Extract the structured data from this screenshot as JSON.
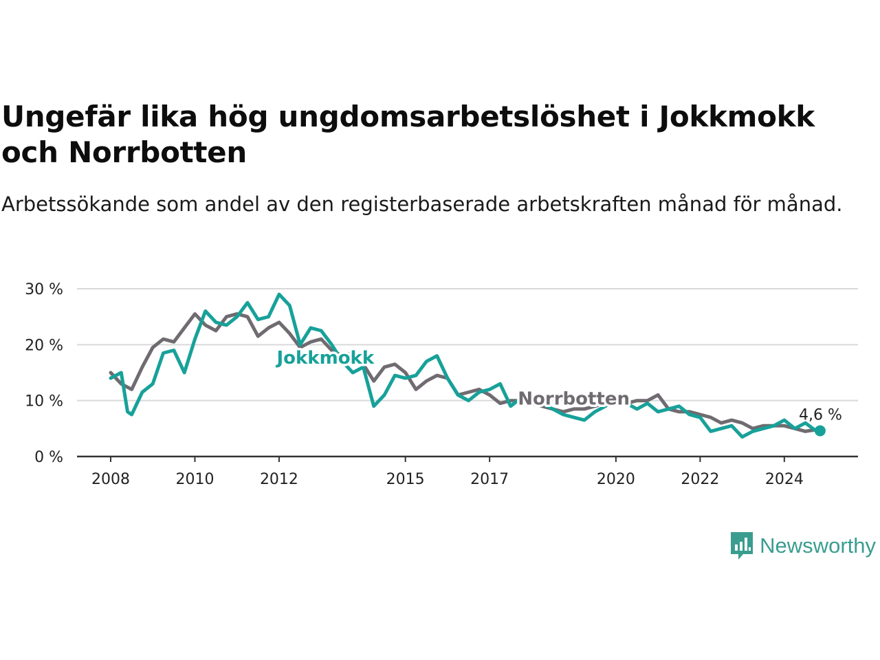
{
  "title": "Ungefär lika hög ungdomsarbetslöshet i Jokkmokk och Norrbotten",
  "subtitle": "Arbetssökande som andel av den registerbaserade arbetskraften månad för månad.",
  "brand": "Newsworthy",
  "colors": {
    "jokkmokk": "#17a199",
    "norrbotten": "#6f6b70",
    "grid": "#d9d9d9",
    "axis": "#333333"
  },
  "chart_data": {
    "type": "line",
    "ylim": [
      0,
      30
    ],
    "y_ticks": [
      0,
      10,
      20,
      30
    ],
    "y_tick_labels": [
      "0 %",
      "10 %",
      "20 %",
      "30 %"
    ],
    "x_ticks": [
      2008,
      2010,
      2012,
      2015,
      2017,
      2020,
      2022,
      2024
    ],
    "x_tick_labels": [
      "2008",
      "2010",
      "2012",
      "2015",
      "2017",
      "2020",
      "2022",
      "2024"
    ],
    "xlim": [
      2007.2,
      2025.75
    ],
    "grid": "horizontal",
    "last_value_label": "4,6 %",
    "series": [
      {
        "name": "Norrbotten",
        "x": [
          2008.0,
          2008.25,
          2008.5,
          2008.75,
          2009.0,
          2009.25,
          2009.5,
          2009.75,
          2010.0,
          2010.25,
          2010.5,
          2010.75,
          2011.0,
          2011.25,
          2011.5,
          2011.75,
          2012.0,
          2012.25,
          2012.5,
          2012.75,
          2013.0,
          2013.25,
          2013.5,
          2013.75,
          2014.0,
          2014.25,
          2014.5,
          2014.75,
          2015.0,
          2015.25,
          2015.5,
          2015.75,
          2016.0,
          2016.25,
          2016.5,
          2016.75,
          2017.0,
          2017.25,
          2017.5,
          2017.75,
          2018.0,
          2018.25,
          2018.5,
          2018.75,
          2019.0,
          2019.25,
          2019.5,
          2019.75,
          2020.0,
          2020.25,
          2020.5,
          2020.75,
          2021.0,
          2021.25,
          2021.5,
          2021.75,
          2022.0,
          2022.25,
          2022.5,
          2022.75,
          2023.0,
          2023.25,
          2023.5,
          2023.75,
          2024.0,
          2024.25,
          2024.5,
          2024.75
        ],
        "values": [
          15,
          13,
          12,
          16,
          19.5,
          21,
          20.5,
          23,
          25.5,
          23.5,
          22.5,
          25,
          25.5,
          25,
          21.5,
          23,
          24,
          22,
          19.5,
          20.5,
          21,
          19,
          18,
          18.5,
          16.5,
          13.5,
          16,
          16.5,
          15,
          12,
          13.5,
          14.5,
          14,
          11,
          11.5,
          12,
          11,
          9.5,
          10,
          10,
          9.5,
          9,
          8.5,
          8,
          8.5,
          8.5,
          9,
          9.5,
          10,
          9.5,
          10,
          10,
          11,
          8.5,
          8,
          8,
          7.5,
          7,
          6,
          6.5,
          6,
          5,
          5.5,
          5.5,
          5.5,
          5,
          4.5,
          4.8
        ]
      },
      {
        "name": "Jokkmokk",
        "x": [
          2008.0,
          2008.25,
          2008.4,
          2008.5,
          2008.75,
          2009.0,
          2009.25,
          2009.5,
          2009.75,
          2010.0,
          2010.25,
          2010.5,
          2010.75,
          2011.0,
          2011.25,
          2011.5,
          2011.75,
          2012.0,
          2012.25,
          2012.5,
          2012.75,
          2013.0,
          2013.25,
          2013.5,
          2013.75,
          2014.0,
          2014.25,
          2014.5,
          2014.75,
          2015.0,
          2015.25,
          2015.5,
          2015.75,
          2016.0,
          2016.25,
          2016.5,
          2016.75,
          2017.0,
          2017.25,
          2017.5,
          2017.75,
          2018.0,
          2018.25,
          2018.5,
          2018.75,
          2019.0,
          2019.25,
          2019.5,
          2019.75,
          2020.0,
          2020.25,
          2020.5,
          2020.75,
          2021.0,
          2021.25,
          2021.5,
          2021.75,
          2022.0,
          2022.25,
          2022.5,
          2022.75,
          2023.0,
          2023.25,
          2023.5,
          2023.75,
          2024.0,
          2024.25,
          2024.5,
          2024.75,
          2024.85
        ],
        "values": [
          14,
          15,
          8,
          7.5,
          11.5,
          13,
          18.5,
          19,
          15,
          21,
          26,
          24,
          23.5,
          25,
          27.5,
          24.5,
          25,
          29,
          27,
          20,
          23,
          22.5,
          20,
          17,
          15,
          16,
          9,
          11,
          14.5,
          14,
          14.5,
          17,
          18,
          14,
          11,
          10,
          11.5,
          12,
          13,
          9,
          10.5,
          10,
          9.5,
          8.5,
          7.5,
          7,
          6.5,
          8,
          9,
          10.5,
          9.5,
          8.5,
          9.5,
          8,
          8.5,
          9,
          7.5,
          7,
          4.5,
          5,
          5.5,
          3.5,
          4.5,
          5,
          5.5,
          6.5,
          5,
          6,
          4.6,
          4.6
        ]
      }
    ]
  }
}
